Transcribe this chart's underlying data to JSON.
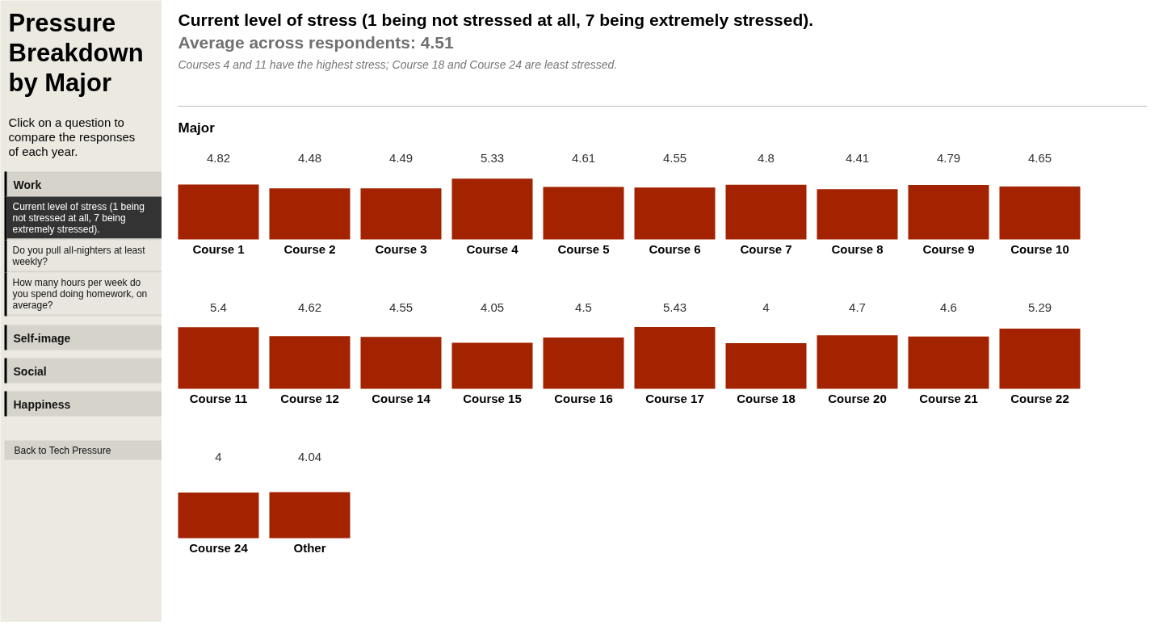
{
  "chart_data": [
    {
      "type": "other",
      "title": "Pressure Breakdown by Major",
      "annotations": [
        "Click on a question to compare the responses of each year.",
        "Work",
        "Current level of stress (1 being not stressed at all, 7 being extremely stressed).",
        "Do you pull all-nighters at least weekly?",
        "How many hours per week do you spend doing homework, on average?",
        "Self-image",
        "Social",
        "Happiness",
        "Back to Tech Pressure"
      ]
    },
    {
      "type": "bar",
      "title": "Current level of stress (1 being not stressed at all, 7 being extremely stressed).",
      "subtitle": "Average across respondents: 4.51",
      "annotations": [
        "Courses 4 and 11 have the highest stress; Course 18 and Course 24 are least stressed."
      ],
      "xlabel": "Major",
      "categories": [
        "Course 1",
        "Course 2",
        "Course 3",
        "Course 4",
        "Course 5",
        "Course 6",
        "Course 7",
        "Course 8",
        "Course 9",
        "Course 10"
      ],
      "values": [
        4.82,
        4.48,
        4.49,
        5.33,
        4.61,
        4.55,
        4.8,
        4.41,
        4.79,
        4.65
      ],
      "color": "#a32300",
      "data_labels": true
    },
    {
      "type": "bar",
      "categories": [
        "Course 11",
        "Course 12",
        "Course 14",
        "Course 15",
        "Course 16",
        "Course 17",
        "Course 18",
        "Course 20",
        "Course 21",
        "Course 22"
      ],
      "values": [
        5.4,
        4.62,
        4.55,
        4.05,
        4.5,
        5.43,
        4,
        4.7,
        4.6,
        5.29
      ],
      "color": "#a32300",
      "data_labels": true
    },
    {
      "type": "bar",
      "categories": [
        "Course 24",
        "Other"
      ],
      "values": [
        4,
        4.04
      ],
      "color": "#a32300",
      "data_labels": true
    }
  ]
}
